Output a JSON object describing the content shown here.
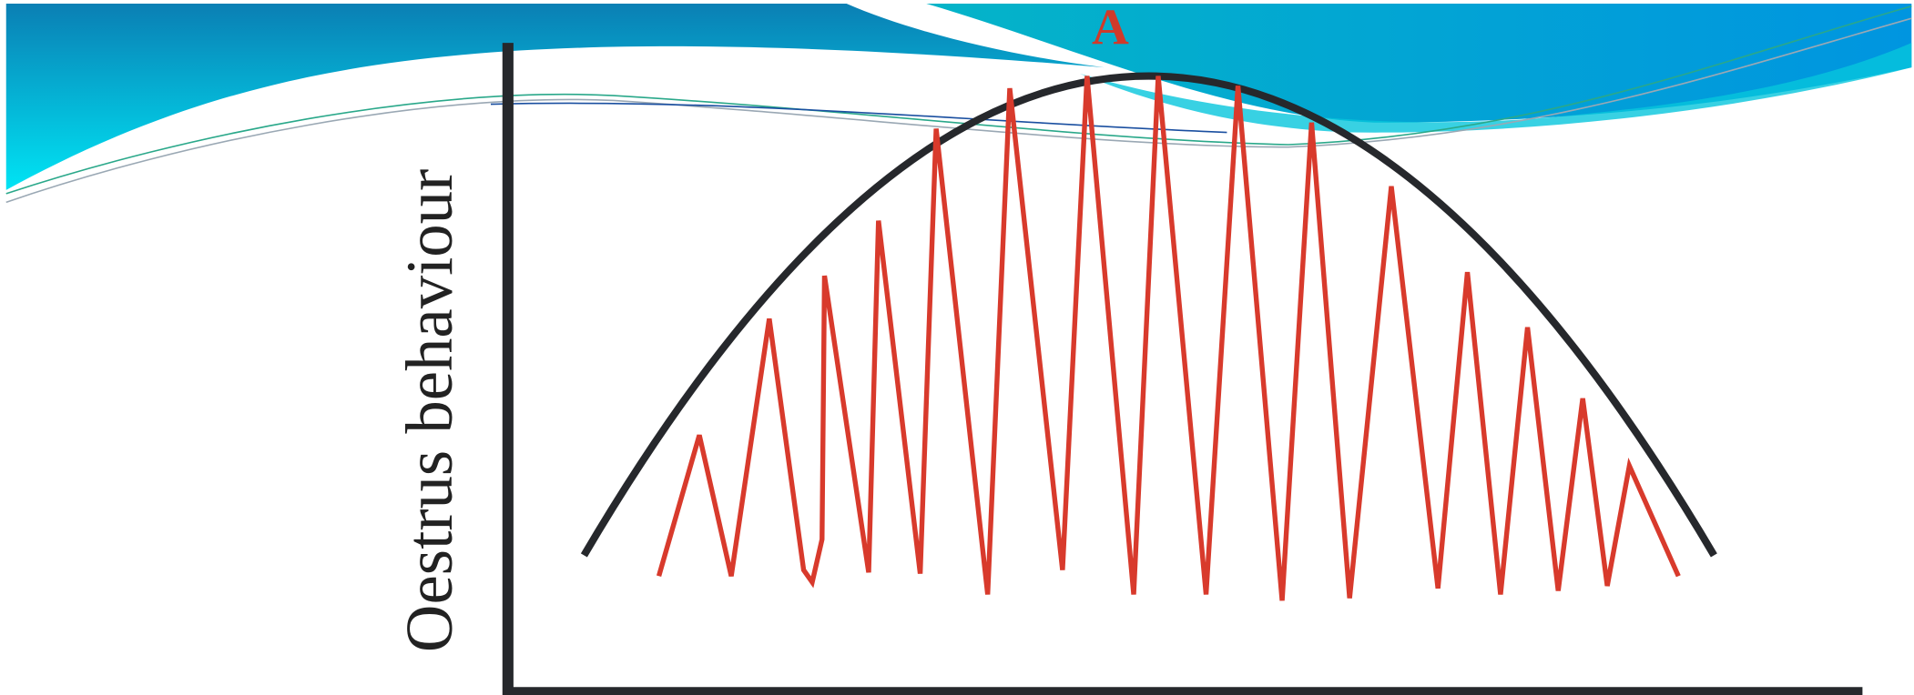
{
  "title": "A",
  "y_axis_label": "Oestrus behaviour"
}
